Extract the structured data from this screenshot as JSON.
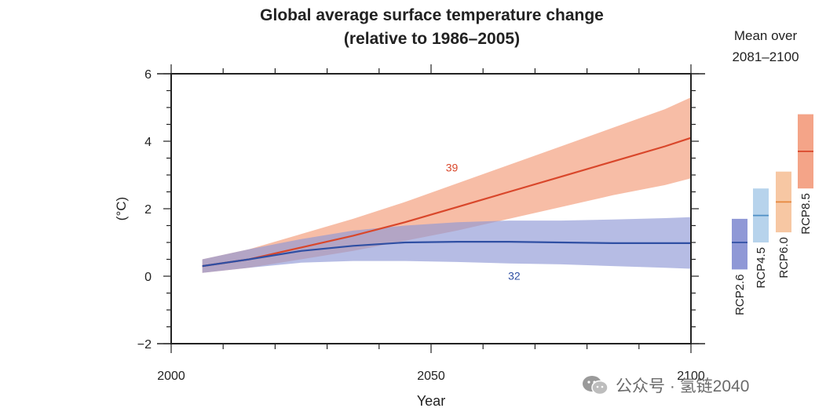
{
  "chart_data": {
    "type": "line",
    "title": "Global average surface temperature change",
    "subtitle": "(relative to 1986–2005)",
    "xlabel": "Year",
    "ylabel": "(°C)",
    "xlim": [
      2000,
      2100
    ],
    "ylim": [
      -2,
      6
    ],
    "x_ticks": [
      "2000",
      "2050",
      "2100"
    ],
    "y_ticks": [
      "−2",
      "0",
      "2",
      "4",
      "6"
    ],
    "series": [
      {
        "name": "RCP8.5",
        "color": "#d9472b",
        "band_color": "#f6b196",
        "annotation": "39",
        "x": [
          2006,
          2015,
          2025,
          2035,
          2045,
          2055,
          2065,
          2075,
          2085,
          2095,
          2100
        ],
        "mean": [
          0.3,
          0.5,
          0.85,
          1.2,
          1.6,
          2.05,
          2.5,
          2.95,
          3.4,
          3.85,
          4.1
        ],
        "lower": [
          0.1,
          0.25,
          0.5,
          0.75,
          1.05,
          1.35,
          1.7,
          2.05,
          2.4,
          2.7,
          2.9
        ],
        "upper": [
          0.5,
          0.8,
          1.25,
          1.7,
          2.2,
          2.75,
          3.3,
          3.85,
          4.4,
          4.95,
          5.3
        ]
      },
      {
        "name": "RCP2.6",
        "color": "#2f4fa3",
        "band_color": "#8f98d6",
        "annotation": "32",
        "x": [
          2006,
          2015,
          2025,
          2035,
          2045,
          2055,
          2065,
          2075,
          2085,
          2095,
          2100
        ],
        "mean": [
          0.3,
          0.5,
          0.75,
          0.9,
          1.0,
          1.02,
          1.02,
          1.0,
          0.98,
          0.98,
          0.98
        ],
        "lower": [
          0.1,
          0.25,
          0.4,
          0.45,
          0.45,
          0.42,
          0.38,
          0.35,
          0.3,
          0.25,
          0.22
        ],
        "upper": [
          0.5,
          0.8,
          1.1,
          1.35,
          1.5,
          1.6,
          1.65,
          1.65,
          1.68,
          1.72,
          1.75
        ]
      }
    ],
    "side_panel": {
      "title_line1": "Mean over",
      "title_line2": "2081–2100",
      "bars": [
        {
          "name": "RCP2.6",
          "low": 0.2,
          "high": 1.7,
          "mean": 1.0,
          "fill": "#8f98d6",
          "line": "#2f4fa3"
        },
        {
          "name": "RCP4.5",
          "low": 1.0,
          "high": 2.6,
          "mean": 1.8,
          "fill": "#b7d3ec",
          "line": "#4f8fc6"
        },
        {
          "name": "RCP6.0",
          "low": 1.3,
          "high": 3.1,
          "mean": 2.2,
          "fill": "#f7c7a3",
          "line": "#e6873e"
        },
        {
          "name": "RCP8.5",
          "low": 2.6,
          "high": 4.8,
          "mean": 3.7,
          "fill": "#f4a488",
          "line": "#d9472b"
        }
      ]
    }
  },
  "watermark": {
    "text": "公众号 · 氢链2040",
    "icon": "wechat-icon"
  }
}
